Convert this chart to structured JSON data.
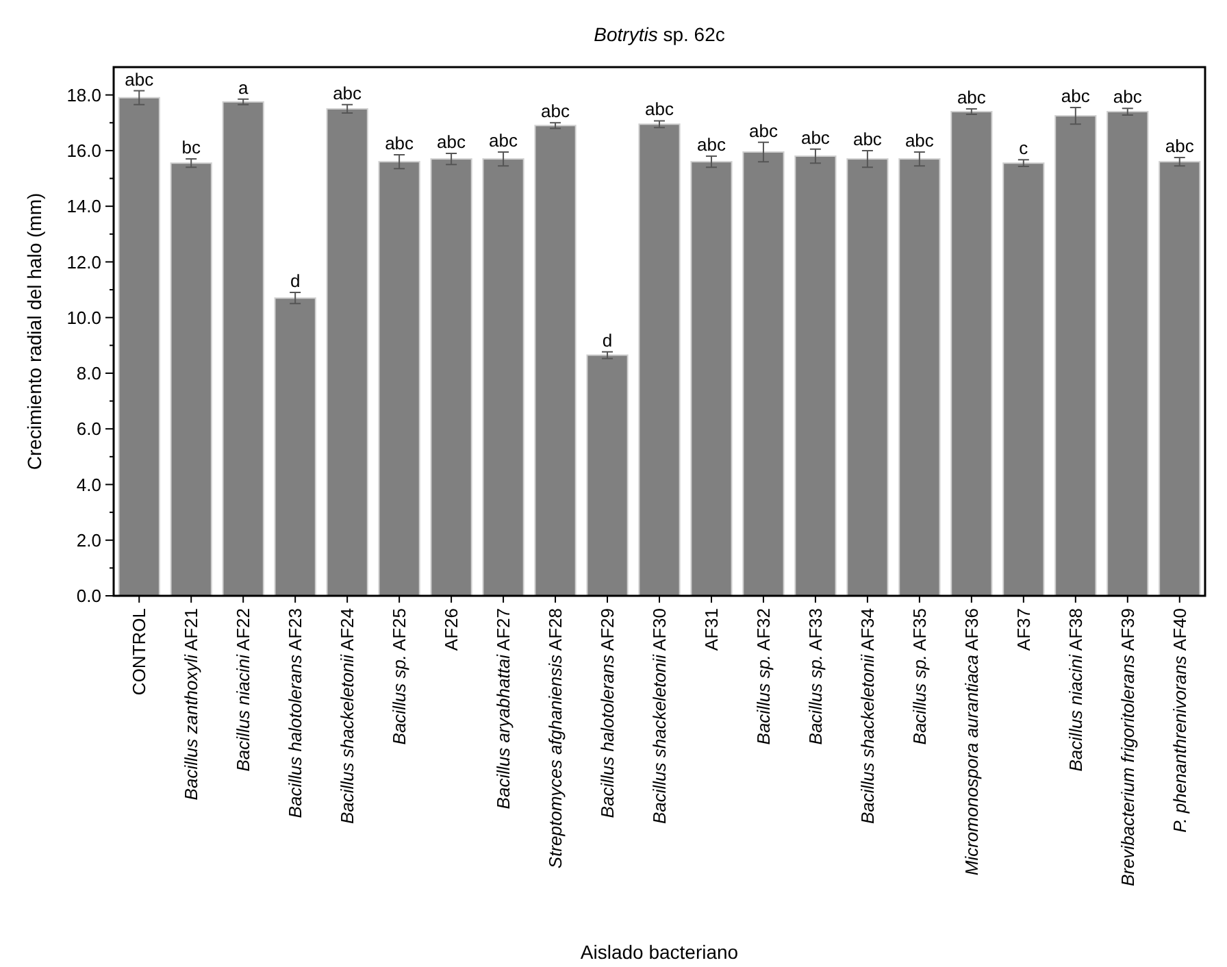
{
  "chart_data": {
    "type": "bar",
    "title": "Botrytis sp. 62c",
    "xlabel": "Aislado bacteriano",
    "ylabel": "Crecimiento radial del halo (mm)",
    "categories": [
      "CONTROL",
      "Bacillus zanthoxyli AF21",
      "Bacillus niacini AF22",
      "Bacillus halotolerans AF23",
      "Bacillus shackeletonii AF24",
      "Bacillus sp. AF25",
      "AF26",
      "Bacillus aryabhattai AF27",
      "Streptomyces afghaniensis AF28",
      "Bacillus halotolerans AF29",
      "Bacillus shackeletonii AF30",
      "AF31",
      "Bacillus sp. AF32",
      "Bacillus sp. AF33",
      "Bacillus shackeletonii AF34",
      "Bacillus sp. AF35",
      "Micromonospora aurantiaca AF36",
      "AF37",
      "Bacillus niacini AF38",
      "Brevibacterium frigoritolerans AF39",
      "P. phenanthrenivorans  AF40"
    ],
    "values": [
      17.9,
      15.55,
      17.75,
      10.7,
      17.5,
      15.6,
      15.7,
      15.7,
      16.9,
      8.65,
      16.95,
      15.6,
      15.95,
      15.8,
      15.7,
      15.7,
      17.4,
      15.55,
      17.25,
      17.4,
      15.6
    ],
    "errors": [
      0.25,
      0.15,
      0.1,
      0.2,
      0.15,
      0.25,
      0.2,
      0.25,
      0.1,
      0.12,
      0.12,
      0.2,
      0.35,
      0.25,
      0.3,
      0.25,
      0.1,
      0.12,
      0.3,
      0.12,
      0.15
    ],
    "value_labels": [
      "abc",
      "bc",
      "a",
      "d",
      "abc",
      "abc",
      "abc",
      "abc",
      "abc",
      "d",
      "abc",
      "abc",
      "abc",
      "abc",
      "abc",
      "abc",
      "abc",
      "c",
      "abc",
      "abc",
      "abc"
    ],
    "color": "#808080",
    "ylim": [
      0,
      19
    ],
    "yticks": [
      {
        "value": 0,
        "label": "0.0"
      },
      {
        "value": 1,
        "label": null
      },
      {
        "value": 2,
        "label": "2.0"
      },
      {
        "value": 3,
        "label": null
      },
      {
        "value": 4,
        "label": "4.0"
      },
      {
        "value": 5,
        "label": null
      },
      {
        "value": 6,
        "label": "6.0"
      },
      {
        "value": 7,
        "label": null
      },
      {
        "value": 8,
        "label": "8.0"
      },
      {
        "value": 9,
        "label": null
      },
      {
        "value": 10,
        "label": "10.0"
      },
      {
        "value": 11,
        "label": null
      },
      {
        "value": 12,
        "label": "12.0"
      },
      {
        "value": 13,
        "label": null
      },
      {
        "value": 14,
        "label": "14.0"
      },
      {
        "value": 15,
        "label": null
      },
      {
        "value": 16,
        "label": "16.0"
      },
      {
        "value": 17,
        "label": null
      },
      {
        "value": 18,
        "label": "18.0"
      }
    ],
    "grid": false
  }
}
